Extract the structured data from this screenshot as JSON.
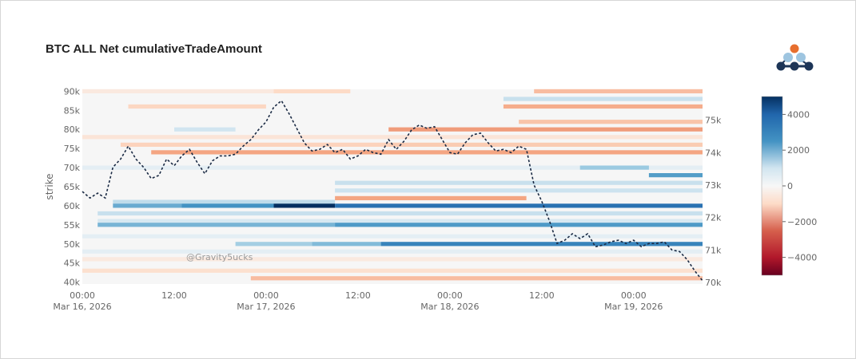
{
  "chart_data": {
    "type": "heatmap",
    "title": "BTC ALL Net cumulativeTradeAmount",
    "ylabel": "strike",
    "watermark": "@Gravity5ucks",
    "x_ticks": [
      {
        "time": "2026-03-16T00:00",
        "line1": "00:00",
        "line2": "Mar 16, 2026"
      },
      {
        "time": "2026-03-16T12:00",
        "line1": "12:00",
        "line2": ""
      },
      {
        "time": "2026-03-17T00:00",
        "line1": "00:00",
        "line2": "Mar 17, 2026"
      },
      {
        "time": "2026-03-17T12:00",
        "line1": "12:00",
        "line2": ""
      },
      {
        "time": "2026-03-18T00:00",
        "line1": "00:00",
        "line2": "Mar 18, 2026"
      },
      {
        "time": "2026-03-18T12:00",
        "line1": "12:00",
        "line2": ""
      },
      {
        "time": "2026-03-19T00:00",
        "line1": "00:00",
        "line2": "Mar 19, 2026"
      }
    ],
    "xlim": [
      "2026-03-16T00:00",
      "2026-03-19T09:00"
    ],
    "y_ticks": [
      {
        "value": 40000,
        "label": "40k"
      },
      {
        "value": 45000,
        "label": "45k"
      },
      {
        "value": 50000,
        "label": "50k"
      },
      {
        "value": 55000,
        "label": "55k"
      },
      {
        "value": 60000,
        "label": "60k"
      },
      {
        "value": 65000,
        "label": "65k"
      },
      {
        "value": 70000,
        "label": "70k"
      },
      {
        "value": 75000,
        "label": "75k"
      },
      {
        "value": 80000,
        "label": "80k"
      },
      {
        "value": 85000,
        "label": "85k"
      },
      {
        "value": 90000,
        "label": "90k"
      }
    ],
    "ylim": [
      39500,
      90500
    ],
    "y2_ticks": [
      {
        "value": 70000,
        "label": "70k"
      },
      {
        "value": 71000,
        "label": "71k"
      },
      {
        "value": 72000,
        "label": "72k"
      },
      {
        "value": 73000,
        "label": "73k"
      },
      {
        "value": 74000,
        "label": "74k"
      },
      {
        "value": 75000,
        "label": "75k"
      }
    ],
    "y2lim": [
      69950,
      75950
    ],
    "colorbar": {
      "range": [
        -5000,
        5000
      ],
      "ticks": [
        {
          "value": 4000,
          "label": "4000"
        },
        {
          "value": 2000,
          "label": "2000"
        },
        {
          "value": 0,
          "label": "0"
        },
        {
          "value": -2000,
          "label": "−2000"
        },
        {
          "value": -4000,
          "label": "−4000"
        }
      ]
    },
    "heatmap_bands": [
      {
        "strike": 90000,
        "segments": [
          {
            "from": 0,
            "to": 25,
            "value": -150
          },
          {
            "from": 25,
            "to": 35,
            "value": -300
          },
          {
            "from": 59,
            "to": 81,
            "value": -700
          }
        ]
      },
      {
        "strike": 88000,
        "segments": [
          {
            "from": 55,
            "to": 81,
            "value": 400
          }
        ]
      },
      {
        "strike": 86000,
        "segments": [
          {
            "from": 6,
            "to": 24,
            "value": -350
          },
          {
            "from": 55,
            "to": 81,
            "value": -900
          }
        ]
      },
      {
        "strike": 82000,
        "segments": [
          {
            "from": 57,
            "to": 81,
            "value": -600
          }
        ]
      },
      {
        "strike": 80000,
        "segments": [
          {
            "from": 12,
            "to": 20,
            "value": 300
          },
          {
            "from": 40,
            "to": 81,
            "value": -1200
          }
        ]
      },
      {
        "strike": 78000,
        "segments": [
          {
            "from": 0,
            "to": 81,
            "value": -200
          }
        ]
      },
      {
        "strike": 76000,
        "segments": [
          {
            "from": 5,
            "to": 40,
            "value": -400
          },
          {
            "from": 40,
            "to": 81,
            "value": -500
          }
        ]
      },
      {
        "strike": 74000,
        "segments": [
          {
            "from": 9,
            "to": 81,
            "value": -1000
          }
        ]
      },
      {
        "strike": 70000,
        "segments": [
          {
            "from": 0,
            "to": 81,
            "value": 150
          },
          {
            "from": 65,
            "to": 74,
            "value": 900
          }
        ]
      },
      {
        "strike": 68000,
        "segments": [
          {
            "from": 74,
            "to": 81,
            "value": 2200
          }
        ]
      },
      {
        "strike": 66000,
        "segments": [
          {
            "from": 33,
            "to": 81,
            "value": 400
          }
        ]
      },
      {
        "strike": 64000,
        "segments": [
          {
            "from": 33,
            "to": 81,
            "value": 350
          }
        ]
      },
      {
        "strike": 62000,
        "segments": [
          {
            "from": 33,
            "to": 58,
            "value": -1000
          }
        ]
      },
      {
        "strike": 61000,
        "segments": [
          {
            "from": 4,
            "to": 33,
            "value": 500
          }
        ]
      },
      {
        "strike": 60000,
        "segments": [
          {
            "from": 4,
            "to": 13,
            "value": 1800
          },
          {
            "from": 13,
            "to": 25,
            "value": 2500
          },
          {
            "from": 25,
            "to": 33,
            "value": 5000
          },
          {
            "from": 33,
            "to": 81,
            "value": 3600
          }
        ]
      },
      {
        "strike": 58000,
        "segments": [
          {
            "from": 2,
            "to": 81,
            "value": 400
          }
        ]
      },
      {
        "strike": 56000,
        "segments": [
          {
            "from": 2,
            "to": 81,
            "value": 250
          }
        ]
      },
      {
        "strike": 55000,
        "segments": [
          {
            "from": 2,
            "to": 33,
            "value": 1500
          },
          {
            "from": 33,
            "to": 81,
            "value": 2300
          }
        ]
      },
      {
        "strike": 52000,
        "segments": [
          {
            "from": 0,
            "to": 81,
            "value": 150
          }
        ]
      },
      {
        "strike": 50000,
        "segments": [
          {
            "from": 20,
            "to": 30,
            "value": 800
          },
          {
            "from": 30,
            "to": 39,
            "value": 1300
          },
          {
            "from": 39,
            "to": 81,
            "value": 3000
          }
        ]
      },
      {
        "strike": 48000,
        "segments": [
          {
            "from": 0,
            "to": 81,
            "value": 150
          }
        ]
      },
      {
        "strike": 46000,
        "segments": [
          {
            "from": 0,
            "to": 81,
            "value": -150
          }
        ]
      },
      {
        "strike": 43000,
        "segments": [
          {
            "from": 0,
            "to": 81,
            "value": -250
          }
        ]
      },
      {
        "strike": 41000,
        "segments": [
          {
            "from": 22,
            "to": 81,
            "value": -700
          }
        ]
      }
    ],
    "heatmap_band_units": {
      "segment_axis": "hours since Mar 16, 2026 00:00"
    },
    "series": [
      {
        "type": "line",
        "axis": "y2",
        "x_hours": [
          0,
          1,
          2,
          3,
          4,
          5,
          6,
          7,
          8,
          9,
          10,
          11,
          12,
          13,
          14,
          15,
          16,
          17,
          18,
          19,
          20,
          21,
          22,
          23,
          24,
          25,
          26,
          27,
          28,
          29,
          30,
          31,
          32,
          33,
          34,
          35,
          36,
          37,
          38,
          39,
          40,
          41,
          42,
          43,
          44,
          45,
          46,
          47,
          48,
          49,
          50,
          51,
          52,
          53,
          54,
          55,
          56,
          57,
          58,
          59,
          60,
          61,
          62,
          63,
          64,
          65,
          66,
          67,
          68,
          69,
          70,
          71,
          72,
          73,
          74,
          75,
          76,
          77,
          78,
          79,
          80,
          81
        ],
        "y": [
          72.8,
          72.6,
          72.75,
          72.6,
          73.55,
          73.8,
          74.2,
          73.8,
          73.55,
          73.2,
          73.3,
          73.8,
          73.6,
          73.9,
          74.1,
          73.7,
          73.35,
          73.75,
          73.9,
          73.9,
          73.95,
          74.2,
          74.4,
          74.7,
          74.95,
          75.4,
          75.6,
          75.2,
          74.75,
          74.3,
          74.05,
          74.1,
          74.25,
          74.0,
          74.1,
          73.8,
          73.9,
          74.1,
          74.0,
          73.95,
          74.4,
          74.1,
          74.35,
          74.7,
          74.85,
          74.75,
          74.8,
          74.4,
          74.0,
          73.95,
          74.3,
          74.55,
          74.6,
          74.3,
          74.05,
          74.1,
          74.0,
          74.2,
          74.1,
          73.0,
          72.5,
          71.9,
          71.2,
          71.3,
          71.5,
          71.35,
          71.5,
          71.1,
          71.15,
          71.25,
          71.3,
          71.2,
          71.3,
          71.1,
          71.2,
          71.2,
          71.25,
          71.0,
          70.95,
          70.7,
          70.35,
          70.05
        ]
      }
    ]
  }
}
